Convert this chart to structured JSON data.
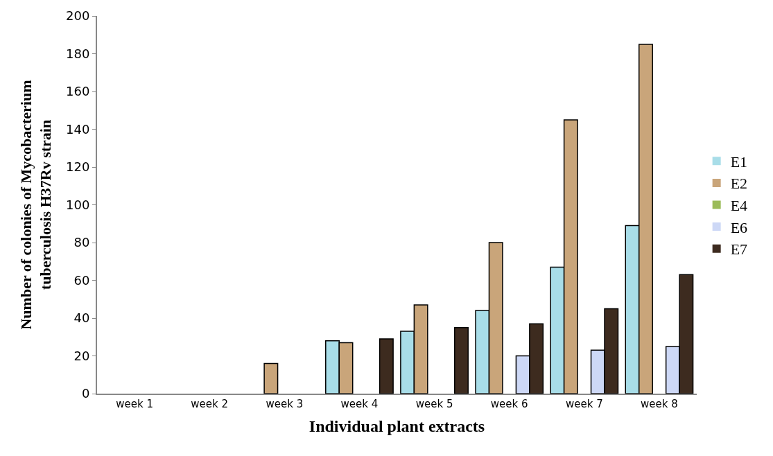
{
  "chart_data": {
    "type": "bar",
    "xlabel": "Individual plant extracts",
    "ylabel": "Number of colonies of Mycobacterium tuberculosis H37Rv strain",
    "categories": [
      "week 1",
      "week 2",
      "week 3",
      "week 4",
      "week 5",
      "week 6",
      "week 7",
      "week 8"
    ],
    "series": [
      {
        "name": "E1",
        "color": "#a8dde8",
        "values": [
          0,
          0,
          0,
          28,
          33,
          44,
          67,
          89
        ]
      },
      {
        "name": "E2",
        "color": "#c9a57a",
        "values": [
          0,
          0,
          16,
          27,
          47,
          80,
          145,
          185
        ]
      },
      {
        "name": "E4",
        "color": "#9bbb59",
        "values": [
          0,
          0,
          0,
          0,
          0,
          0,
          0,
          0
        ]
      },
      {
        "name": "E6",
        "color": "#cdd8f6",
        "values": [
          0,
          0,
          0,
          0,
          0,
          20,
          23,
          25
        ]
      },
      {
        "name": "E7",
        "color": "#3d2b1f",
        "values": [
          0,
          0,
          0,
          29,
          35,
          37,
          45,
          63
        ]
      }
    ],
    "ylim": [
      0,
      200
    ],
    "yticks": [
      0,
      20,
      40,
      60,
      80,
      100,
      120,
      140,
      160,
      180,
      200
    ],
    "legend": "right"
  }
}
